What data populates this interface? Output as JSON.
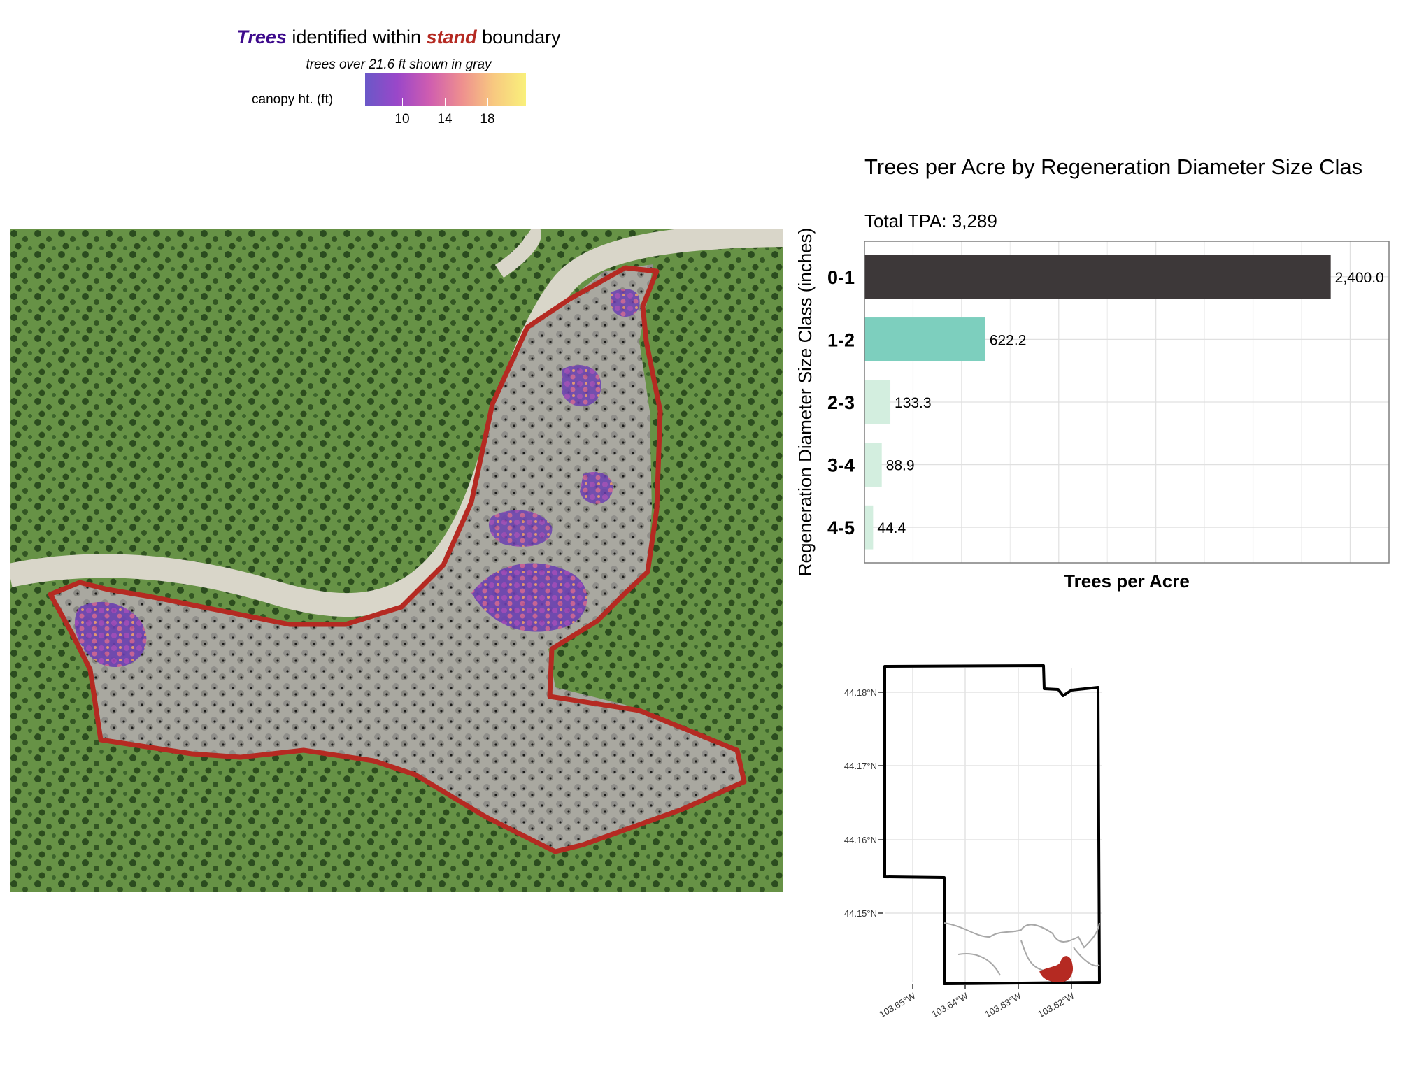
{
  "legend": {
    "title_trees": "Trees",
    "title_mid": "identified within",
    "title_stand": "stand",
    "title_end": "boundary",
    "subtitle": "trees over 21.6 ft shown in gray",
    "colorbar_label": "canopy ht. (ft)",
    "ticks": [
      "10",
      "14",
      "18"
    ]
  },
  "colors": {
    "stand_boundary": "#b52a22",
    "bar_dark": "#3d3839",
    "bar_teal": "#7dcfbe",
    "bar_light": "#d3eedf"
  },
  "chart_data": {
    "type": "bar",
    "orientation": "horizontal",
    "title": "Trees per Acre by Regeneration Diameter Size Clas",
    "subtitle": "Total TPA: 3,289",
    "xlabel": "Trees per Acre",
    "ylabel": "Regeneration Diameter Size Class (inches)",
    "categories": [
      "0-1",
      "1-2",
      "2-3",
      "3-4",
      "4-5"
    ],
    "values": [
      2400.0,
      622.2,
      133.3,
      88.9,
      44.4
    ],
    "value_labels": [
      "2,400.0",
      "622.2",
      "133.3",
      "88.9",
      "44.4"
    ],
    "xlim": [
      0,
      2700
    ]
  },
  "locator": {
    "lat_ticks": [
      "44.18°N",
      "44.17°N",
      "44.16°N",
      "44.15°N"
    ],
    "lon_ticks": [
      "103.65°W",
      "103.64°W",
      "103.63°W",
      "103.62°W"
    ]
  }
}
